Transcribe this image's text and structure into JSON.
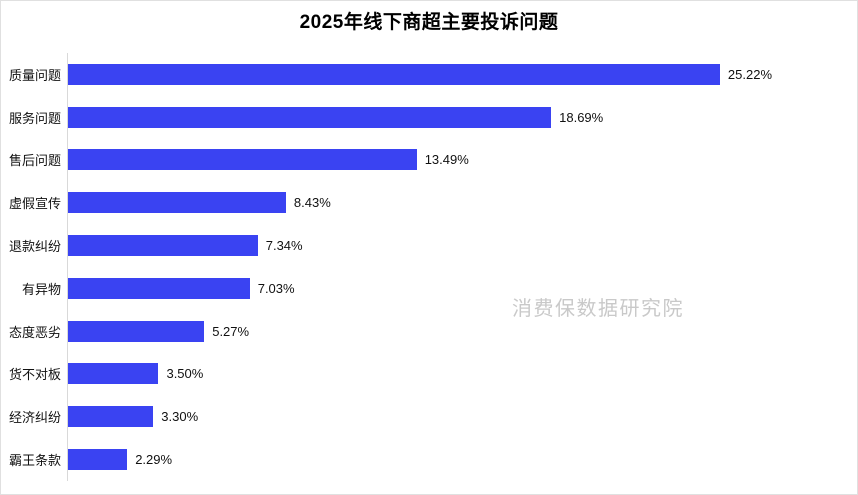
{
  "title": "2025年线下商超主要投诉问题",
  "watermark": "消费保数据研究院",
  "colors": {
    "bar": "#3a43f2",
    "axis_line": "#d9d9d9",
    "card_border": "#e0e0e0",
    "title_text": "#000000",
    "label_text": "#111111",
    "watermark_text": "#c9c9c9"
  },
  "chart_data": {
    "type": "bar",
    "orientation": "horizontal",
    "title": "2025年线下商超主要投诉问题",
    "xlabel": "",
    "ylabel": "",
    "categories": [
      "质量问题",
      "服务问题",
      "售后问题",
      "虚假宣传",
      "退款纠纷",
      "有异物",
      "态度恶劣",
      "货不对板",
      "经济纠纷",
      "霸王条款"
    ],
    "values": [
      25.22,
      18.69,
      13.49,
      8.43,
      7.34,
      7.03,
      5.27,
      3.5,
      3.3,
      2.29
    ],
    "value_labels": [
      "25.22%",
      "18.69%",
      "13.49%",
      "8.43%",
      "7.34%",
      "7.03%",
      "5.27%",
      "3.50%",
      "3.30%",
      "2.29%"
    ],
    "xlim": [
      0,
      30.2
    ],
    "grid": false,
    "legend": false,
    "data_labels_position": "right-of-bar"
  }
}
